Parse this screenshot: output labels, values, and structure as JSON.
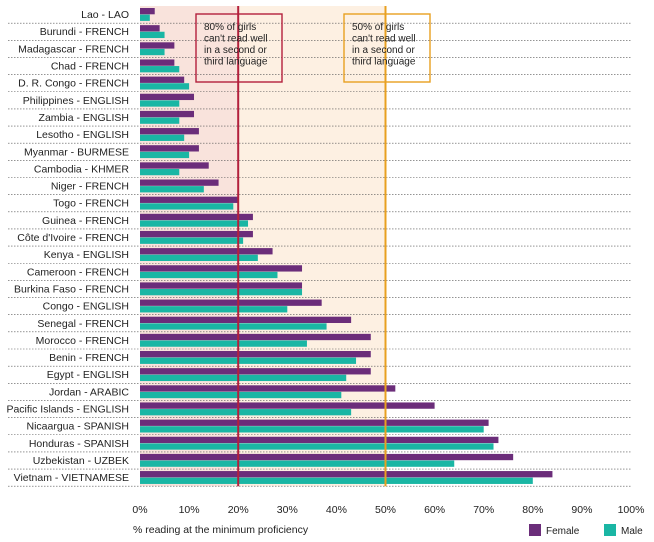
{
  "chart_data": {
    "type": "bar",
    "orientation": "horizontal",
    "categories": [
      "Lao - LAO",
      "Burundi  - FRENCH",
      "Madagascar  - FRENCH",
      "Chad - FRENCH",
      "D. R. Congo  - FRENCH",
      "Philippines - ENGLISH",
      "Zambia - ENGLISH",
      "Lesotho - ENGLISH",
      "Myanmar - BURMESE",
      "Cambodia - KHMER",
      "Niger - FRENCH",
      "Togo - FRENCH",
      "Guinea - FRENCH",
      "Côte d'Ivoire - FRENCH",
      "Kenya - ENGLISH",
      "Cameroon - FRENCH",
      "Burkina Faso - FRENCH",
      "Congo - ENGLISH",
      "Senegal - FRENCH",
      "Morocco - FRENCH",
      "Benin - FRENCH",
      "Egypt - ENGLISH",
      "Jordan - ARABIC",
      "Pacific Islands - ENGLISH",
      "Nicaargua - SPANISH",
      "Honduras - SPANISH",
      "Uzbekistan - UZBEK",
      "Vietnam - VIETNAMESE"
    ],
    "series": [
      {
        "name": "Female",
        "color": "#6b2d7a",
        "values": [
          3,
          4,
          7,
          7,
          9,
          11,
          11,
          12,
          12,
          14,
          16,
          20,
          23,
          23,
          27,
          33,
          33,
          37,
          43,
          47,
          47,
          47,
          52,
          60,
          71,
          73,
          76,
          84
        ]
      },
      {
        "name": "Male",
        "color": "#1ab6a4",
        "values": [
          2,
          5,
          5,
          8,
          10,
          8,
          8,
          9,
          10,
          8,
          13,
          19,
          22,
          21,
          24,
          28,
          33,
          30,
          38,
          34,
          44,
          42,
          41,
          43,
          70,
          72,
          64,
          80
        ]
      }
    ],
    "xlabel": "% reading at the minimum proficiency",
    "ylabel": "",
    "xlim": [
      0,
      100
    ],
    "xticks": [
      "0%",
      "10%",
      "20%",
      "30%",
      "40%",
      "50%",
      "60%",
      "70%",
      "80%",
      "90%",
      "100%"
    ],
    "grid": "dashed horizontal separators between rows",
    "legend": "bottom-right",
    "reference_lines": [
      {
        "value": 20,
        "color": "#b3203d",
        "label": "80% of girls can't read well in a second or third language"
      },
      {
        "value": 50,
        "color": "#e8a020",
        "label": "50% of girls can't read well in a second or third language"
      }
    ],
    "shaded_regions": [
      {
        "from": 0,
        "to": 20,
        "color": "#f9e3dc"
      },
      {
        "from": 20,
        "to": 50,
        "color": "#fdf0e2"
      }
    ]
  }
}
